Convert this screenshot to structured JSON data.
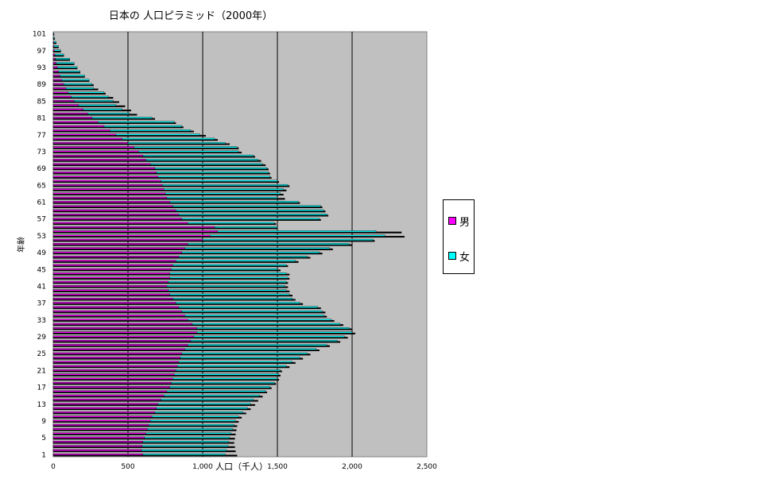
{
  "chart_data": {
    "type": "bar",
    "orientation": "horizontal",
    "title": "日本の 人口ピラミッド（2000年）",
    "xlabel": "人口（千人）",
    "ylabel": "年齢",
    "xlim": [
      0,
      2500
    ],
    "x_ticks": [
      "0",
      "500",
      "1,000",
      "1,500",
      "2,000",
      "2,500"
    ],
    "y_ticks": [
      "1",
      "5",
      "9",
      "13",
      "17",
      "21",
      "25",
      "29",
      "33",
      "37",
      "41",
      "45",
      "49",
      "53",
      "57",
      "61",
      "65",
      "69",
      "73",
      "77",
      "81",
      "85",
      "89",
      "93",
      "97",
      "101"
    ],
    "grid": true,
    "legend_position": "right",
    "categories": [
      1,
      2,
      3,
      4,
      5,
      6,
      7,
      8,
      9,
      10,
      11,
      12,
      13,
      14,
      15,
      16,
      17,
      18,
      19,
      20,
      21,
      22,
      23,
      24,
      25,
      26,
      27,
      28,
      29,
      30,
      31,
      32,
      33,
      34,
      35,
      36,
      37,
      38,
      39,
      40,
      41,
      42,
      43,
      44,
      45,
      46,
      47,
      48,
      49,
      50,
      51,
      52,
      53,
      54,
      55,
      56,
      57,
      58,
      59,
      60,
      61,
      62,
      63,
      64,
      65,
      66,
      67,
      68,
      69,
      70,
      71,
      72,
      73,
      74,
      75,
      76,
      77,
      78,
      79,
      80,
      81,
      82,
      83,
      84,
      85,
      86,
      87,
      88,
      89,
      90,
      91,
      92,
      93,
      94,
      95,
      96,
      97,
      98,
      99,
      100,
      101
    ],
    "series": [
      {
        "name": "男",
        "color": "#ff00ff",
        "values": [
          600,
          590,
          595,
          600,
          610,
          620,
          630,
          640,
          650,
          660,
          680,
          690,
          700,
          720,
          740,
          760,
          780,
          790,
          800,
          810,
          820,
          830,
          840,
          850,
          860,
          880,
          900,
          920,
          940,
          960,
          960,
          930,
          900,
          880,
          860,
          840,
          820,
          800,
          780,
          770,
          760,
          770,
          780,
          780,
          790,
          800,
          820,
          840,
          860,
          880,
          900,
          1000,
          1050,
          1100,
          1080,
          900,
          860,
          840,
          820,
          800,
          780,
          760,
          750,
          740,
          730,
          720,
          700,
          690,
          680,
          650,
          620,
          600,
          570,
          540,
          500,
          460,
          420,
          380,
          340,
          300,
          260,
          230,
          200,
          170,
          140,
          120,
          100,
          85,
          70,
          55,
          45,
          35,
          27,
          20,
          15,
          11,
          8,
          5,
          3,
          2,
          1
        ]
      },
      {
        "name": "女",
        "color": "#00ffff",
        "values": [
          1150,
          1160,
          1170,
          1175,
          1180,
          1190,
          1200,
          1210,
          1220,
          1240,
          1270,
          1300,
          1320,
          1340,
          1380,
          1420,
          1450,
          1480,
          1500,
          1510,
          1520,
          1560,
          1600,
          1650,
          1700,
          1760,
          1830,
          1900,
          1950,
          2000,
          1980,
          1920,
          1860,
          1810,
          1800,
          1770,
          1650,
          1600,
          1580,
          1560,
          1550,
          1560,
          1570,
          1560,
          1500,
          1560,
          1620,
          1700,
          1780,
          1850,
          1980,
          2140,
          2220,
          2160,
          1500,
          1480,
          1780,
          1830,
          1810,
          1790,
          1640,
          1500,
          1520,
          1540,
          1570,
          1500,
          1450,
          1440,
          1430,
          1400,
          1370,
          1340,
          1240,
          1230,
          1150,
          1080,
          980,
          920,
          860,
          810,
          660,
          510,
          460,
          420,
          400,
          370,
          340,
          270,
          260,
          240,
          210,
          180,
          160,
          140,
          110,
          70,
          50,
          35,
          20,
          10,
          5
        ]
      },
      {
        "name": "",
        "color": "#000000",
        "values": [
          1230,
          1220,
          1215,
          1210,
          1215,
          1220,
          1225,
          1230,
          1240,
          1260,
          1290,
          1320,
          1350,
          1370,
          1400,
          1430,
          1460,
          1490,
          1510,
          1520,
          1530,
          1580,
          1620,
          1670,
          1720,
          1780,
          1850,
          1920,
          1970,
          2020,
          2000,
          1940,
          1880,
          1830,
          1820,
          1790,
          1670,
          1620,
          1600,
          1580,
          1570,
          1570,
          1580,
          1580,
          1520,
          1570,
          1640,
          1720,
          1800,
          1870,
          2000,
          2150,
          2350,
          2330,
          1500,
          1490,
          1790,
          1840,
          1820,
          1800,
          1650,
          1550,
          1540,
          1560,
          1580,
          1510,
          1460,
          1450,
          1440,
          1420,
          1390,
          1350,
          1260,
          1240,
          1180,
          1100,
          1020,
          940,
          870,
          820,
          680,
          560,
          520,
          480,
          440,
          400,
          350,
          300,
          270,
          240,
          210,
          180,
          160,
          140,
          110,
          70,
          50,
          35,
          20,
          10,
          5
        ]
      }
    ]
  }
}
